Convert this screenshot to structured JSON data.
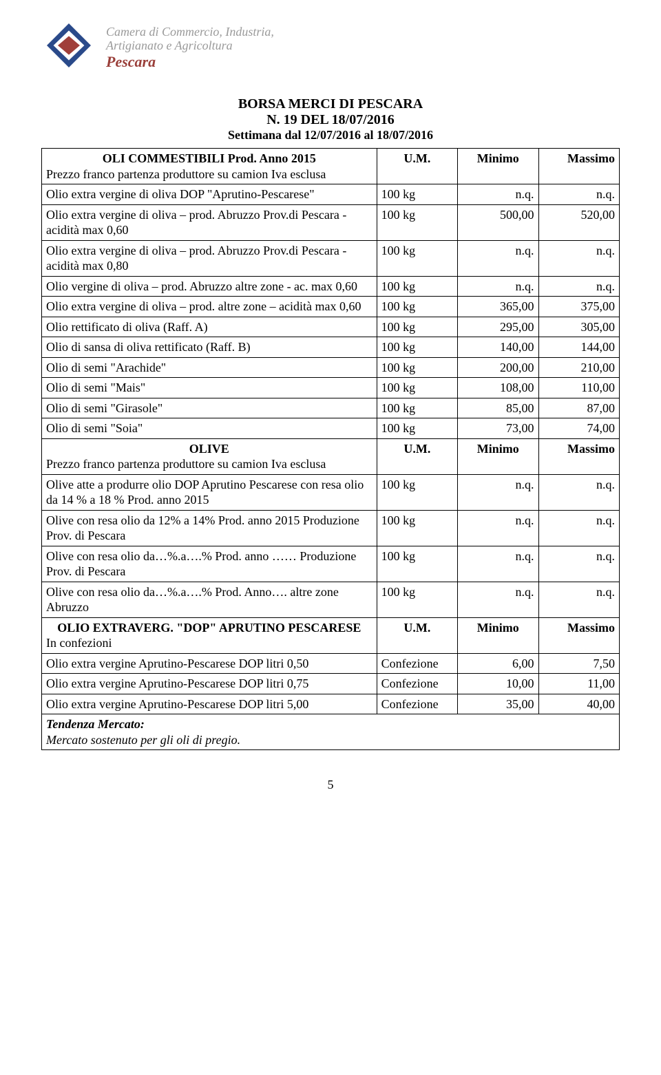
{
  "header": {
    "org_line1": "Camera di Commercio, Industria,",
    "org_line2": "Artigianato e Agricoltura",
    "org_city": "Pescara"
  },
  "title": {
    "main": "BORSA MERCI DI PESCARA",
    "sub": "N. 19 DEL 18/07/2016",
    "week": "Settimana dal 12/07/2016 al 18/07/2016"
  },
  "cols": {
    "um": "U.M.",
    "min": "Minimo",
    "max": "Massimo"
  },
  "sections": {
    "oli": {
      "head1": "OLI COMMESTIBILI Prod. Anno 2015",
      "head2": "Prezzo franco partenza produttore su camion Iva esclusa",
      "rows": [
        {
          "name": "Olio extra vergine di oliva DOP \"Aprutino-Pescarese\"",
          "um": "100 kg",
          "min": "n.q.",
          "max": "n.q."
        },
        {
          "name": "Olio extra vergine di oliva – prod. Abruzzo Prov.di Pescara - acidità max 0,60",
          "um": "100 kg",
          "min": "500,00",
          "max": "520,00"
        },
        {
          "name": "Olio extra vergine di oliva – prod. Abruzzo Prov.di Pescara - acidità max 0,80",
          "um": "100 kg",
          "min": "n.q.",
          "max": "n.q."
        },
        {
          "name": "Olio vergine di oliva – prod. Abruzzo altre zone - ac. max 0,60",
          "um": "100 kg",
          "min": "n.q.",
          "max": "n.q."
        },
        {
          "name": "Olio extra vergine di oliva – prod. altre zone – acidità max 0,60",
          "um": "100 kg",
          "min": "365,00",
          "max": "375,00"
        },
        {
          "name": "Olio rettificato di oliva (Raff. A)",
          "um": "100 kg",
          "min": "295,00",
          "max": "305,00"
        },
        {
          "name": "Olio di sansa di oliva rettificato (Raff. B)",
          "um": "100 kg",
          "min": "140,00",
          "max": "144,00"
        },
        {
          "name": "Olio di semi \"Arachide\"",
          "um": "100 kg",
          "min": "200,00",
          "max": "210,00"
        },
        {
          "name": "Olio di semi \"Mais\"",
          "um": "100 kg",
          "min": "108,00",
          "max": "110,00"
        },
        {
          "name": "Olio di semi \"Girasole\"",
          "um": "100 kg",
          "min": "85,00",
          "max": "87,00"
        },
        {
          "name": "Olio di semi \"Soia\"",
          "um": "100 kg",
          "min": "73,00",
          "max": "74,00"
        }
      ]
    },
    "olive": {
      "head1": "OLIVE",
      "head2": "Prezzo franco partenza produttore su camion Iva esclusa",
      "rows": [
        {
          "name": "Olive atte a produrre olio DOP Aprutino Pescarese con resa olio da 14 % a 18 % Prod. anno 2015",
          "um": "100 kg",
          "min": "n.q.",
          "max": "n.q."
        },
        {
          "name": "Olive con resa olio da 12% a 14% Prod. anno 2015 Produzione  Prov. di Pescara",
          "um": "100 kg",
          "min": "n.q.",
          "max": "n.q."
        },
        {
          "name": "Olive con resa olio da…%.a….% Prod. anno …… Produzione  Prov. di Pescara",
          "um": "100 kg",
          "min": "n.q.",
          "max": "n.q."
        },
        {
          "name": "Olive con resa olio da…%.a….% Prod. Anno…. altre zone Abruzzo",
          "um": "100 kg",
          "min": "n.q.",
          "max": "n.q."
        }
      ]
    },
    "dop": {
      "head1": "OLIO EXTRAVERG. \"DOP\" APRUTINO PESCARESE",
      "head2": "In confezioni",
      "rows": [
        {
          "name": "Olio extra vergine Aprutino-Pescarese DOP litri 0,50",
          "um": "Confezione",
          "min": "6,00",
          "max": "7,50"
        },
        {
          "name": "Olio extra vergine Aprutino-Pescarese DOP litri 0,75",
          "um": "Confezione",
          "min": "10,00",
          "max": "11,00"
        },
        {
          "name": "Olio extra vergine Aprutino-Pescarese DOP litri 5,00",
          "um": "Confezione",
          "min": "35,00",
          "max": "40,00"
        }
      ]
    }
  },
  "footer": {
    "tendenza_label": "Tendenza Mercato:",
    "tendenza_text": "Mercato sostenuto per gli oli di pregio."
  },
  "page_number": "5"
}
